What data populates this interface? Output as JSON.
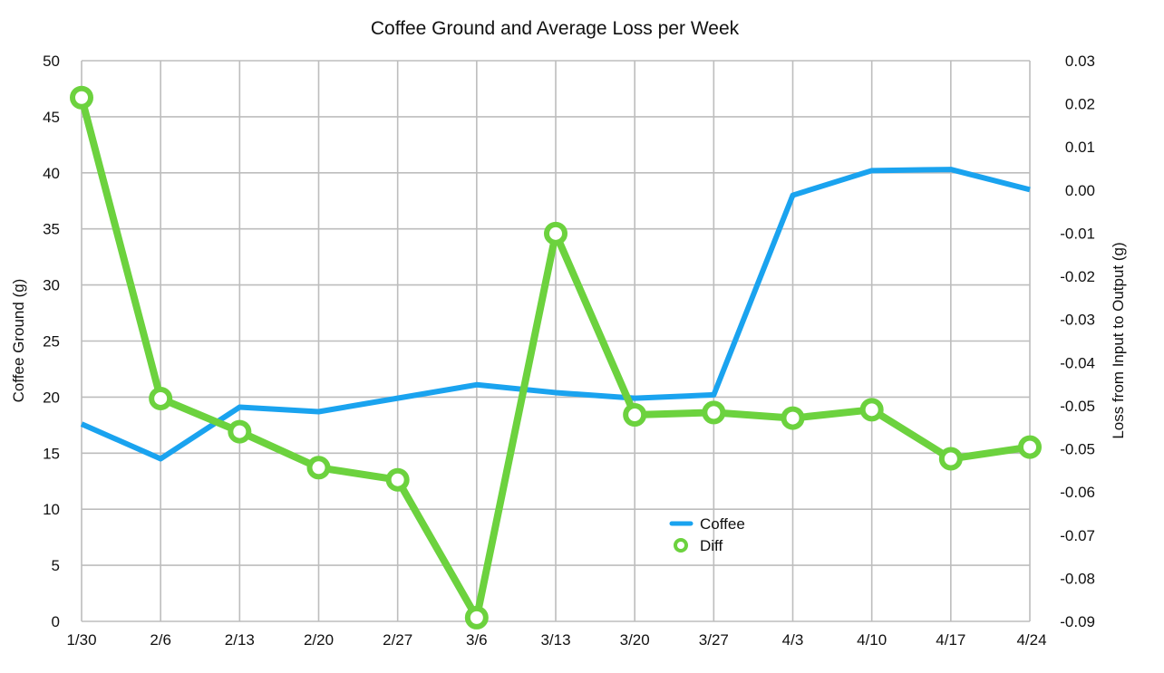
{
  "chart_data": {
    "type": "line",
    "title": "Coffee Ground and Average Loss per Week",
    "categories": [
      "1/30",
      "2/6",
      "2/13",
      "2/20",
      "2/27",
      "3/6",
      "3/13",
      "3/20",
      "3/27",
      "4/3",
      "4/10",
      "4/17",
      "4/24"
    ],
    "y_left": {
      "label": "Coffee Ground (g)",
      "range": [
        0,
        50
      ],
      "ticks": [
        "0",
        "5",
        "10",
        "15",
        "20",
        "25",
        "30",
        "35",
        "40",
        "45",
        "50"
      ]
    },
    "y_right": {
      "label": "Loss from Input to Output (g)",
      "range": [
        -0.09,
        0.03
      ],
      "ticks": [
        "-0.09",
        "-0.08",
        "-0.07",
        "-0.06",
        "-0.05",
        "-0.05",
        "-0.04",
        "-0.03",
        "-0.02",
        "-0.01",
        "0.00",
        "0.01",
        "0.02",
        "0.03"
      ]
    },
    "grid": true,
    "legend_position": "bottom-center",
    "series": [
      {
        "name": "Coffee",
        "axis": "left",
        "color": "#1aa3ef",
        "marker": "none",
        "values": [
          17.6,
          14.5,
          19.1,
          18.7,
          19.9,
          21.1,
          20.4,
          19.9,
          20.2,
          38.0,
          40.2,
          40.3,
          38.5
        ]
      },
      {
        "name": "Diff",
        "axis": "right",
        "color": "#6cd23e",
        "marker": "circle",
        "values": [
          0.0221,
          -0.0423,
          -0.0494,
          -0.0571,
          -0.0597,
          -0.0892,
          -0.007,
          -0.0458,
          -0.0453,
          -0.0465,
          -0.0447,
          -0.0552,
          -0.0527
        ]
      }
    ]
  }
}
